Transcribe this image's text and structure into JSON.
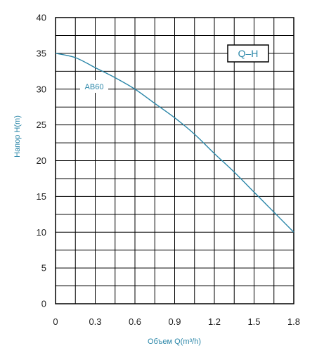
{
  "chart_data": {
    "type": "line",
    "title": "",
    "legend_title": "Q–H",
    "xlabel": "Объем Q(m³/h)",
    "ylabel": "Напор H(m)",
    "xlim": [
      0,
      1.8
    ],
    "ylim": [
      0,
      40
    ],
    "x_ticks": [
      "0",
      "0.3",
      "0.6",
      "0.9",
      "1.2",
      "1.5",
      "1.8"
    ],
    "y_ticks": [
      "0",
      "5",
      "10",
      "15",
      "20",
      "25",
      "30",
      "35",
      "40"
    ],
    "grid": true,
    "series": [
      {
        "name": "AB60",
        "color": "#2a86a8",
        "x": [
          0,
          0.15,
          0.3,
          0.45,
          0.6,
          0.75,
          0.9,
          1.05,
          1.2,
          1.35,
          1.5,
          1.65,
          1.8
        ],
        "y": [
          35,
          34.4,
          33.0,
          31.6,
          30.0,
          28.0,
          26.0,
          23.7,
          21.0,
          18.4,
          15.6,
          12.8,
          10.0
        ]
      }
    ]
  }
}
